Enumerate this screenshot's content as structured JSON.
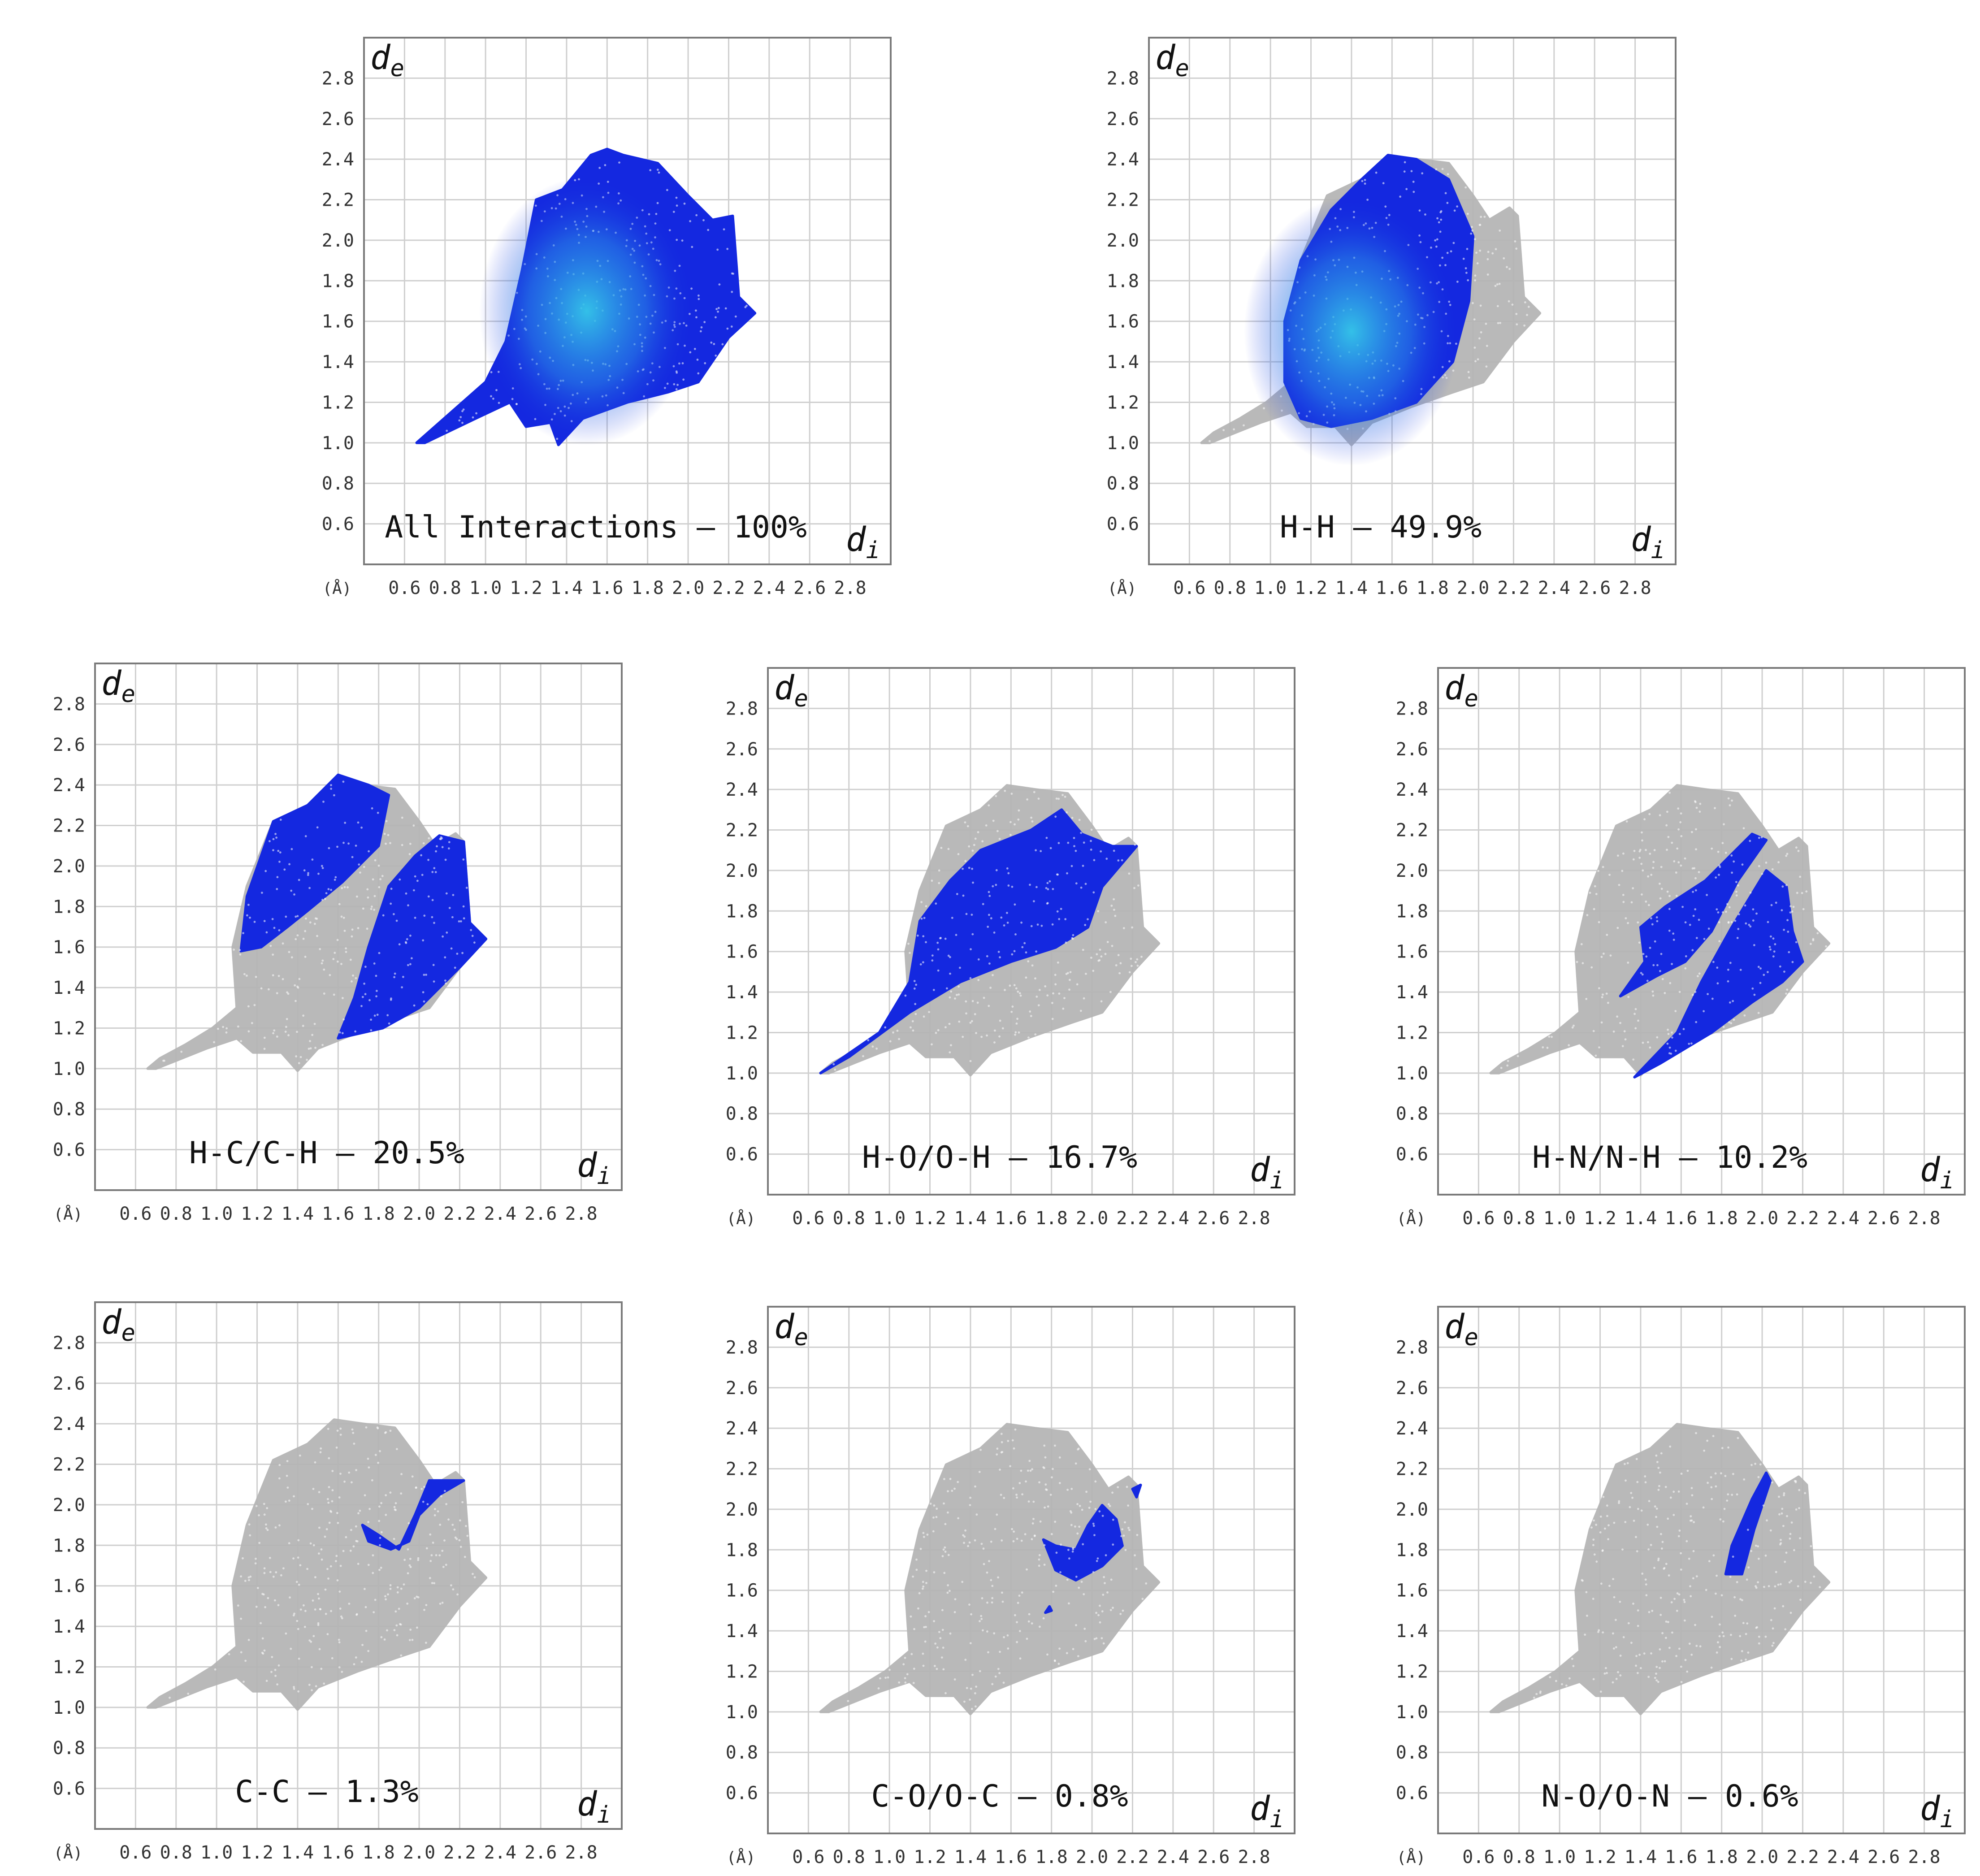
{
  "figure": {
    "description_free": true,
    "axis_unit_label": "(Å)",
    "y_axis_symbol": "d",
    "y_axis_subscript": "e",
    "x_axis_symbol": "d",
    "x_axis_subscript": "i",
    "colors": {
      "background": "#ffffff",
      "frame": "#7a7a7a",
      "grid": "#cfcfcf",
      "gray_cloud": "#b4b4b4",
      "blue": "#1428e0",
      "cyan": "#35c8e8",
      "tick_text": "#333333",
      "title_text": "#111111"
    }
  },
  "chart_data": [
    {
      "type": "scatter",
      "id": "all",
      "title": "All Interactions – 100%",
      "xlabel": "di",
      "ylabel": "de",
      "xlim": [
        0.4,
        3.0
      ],
      "ylim": [
        0.4,
        3.0
      ],
      "x_ticks": [
        "0.6",
        "0.8",
        "1.0",
        "1.2",
        "1.4",
        "1.6",
        "1.8",
        "2.0",
        "2.2",
        "2.4",
        "2.6",
        "2.8"
      ],
      "y_ticks": [
        "2.8",
        "2.6",
        "2.4",
        "2.2",
        "2.0",
        "1.8",
        "1.6",
        "1.4",
        "1.2",
        "1.0",
        "0.8",
        "0.6"
      ],
      "highlight_regions": [
        [
          [
            0.66,
            1.0
          ],
          [
            1.0,
            1.3
          ],
          [
            1.1,
            1.5
          ],
          [
            1.18,
            1.85
          ],
          [
            1.25,
            2.2
          ],
          [
            1.38,
            2.25
          ],
          [
            1.52,
            2.42
          ],
          [
            1.6,
            2.45
          ],
          [
            1.68,
            2.42
          ],
          [
            1.85,
            2.38
          ],
          [
            2.0,
            2.22
          ],
          [
            2.12,
            2.1
          ],
          [
            2.22,
            2.12
          ],
          [
            2.25,
            1.72
          ],
          [
            2.33,
            1.64
          ],
          [
            2.2,
            1.52
          ],
          [
            2.05,
            1.3
          ],
          [
            1.9,
            1.25
          ],
          [
            1.7,
            1.2
          ],
          [
            1.48,
            1.12
          ],
          [
            1.36,
            0.99
          ],
          [
            1.32,
            1.1
          ],
          [
            1.2,
            1.08
          ],
          [
            1.12,
            1.2
          ],
          [
            0.95,
            1.12
          ],
          [
            0.7,
            1.0
          ]
        ]
      ],
      "dense_core": [
        1.5,
        1.65
      ]
    },
    {
      "type": "scatter",
      "id": "hh",
      "title": "H-H – 49.9%",
      "xlabel": "di",
      "ylabel": "de",
      "xlim": [
        0.4,
        3.0
      ],
      "ylim": [
        0.4,
        3.0
      ],
      "x_ticks": [
        "0.6",
        "0.8",
        "1.0",
        "1.2",
        "1.4",
        "1.6",
        "1.8",
        "2.0",
        "2.2",
        "2.4",
        "2.6",
        "2.8"
      ],
      "y_ticks": [
        "2.8",
        "2.6",
        "2.4",
        "2.2",
        "2.0",
        "1.8",
        "1.6",
        "1.4",
        "1.2",
        "1.0",
        "0.8",
        "0.6"
      ],
      "highlight_regions": [
        [
          [
            1.15,
            1.12
          ],
          [
            1.07,
            1.3
          ],
          [
            1.07,
            1.6
          ],
          [
            1.15,
            1.9
          ],
          [
            1.3,
            2.15
          ],
          [
            1.45,
            2.3
          ],
          [
            1.58,
            2.42
          ],
          [
            1.72,
            2.4
          ],
          [
            1.88,
            2.3
          ],
          [
            2.0,
            2.02
          ],
          [
            1.98,
            1.7
          ],
          [
            1.9,
            1.4
          ],
          [
            1.72,
            1.2
          ],
          [
            1.5,
            1.12
          ],
          [
            1.3,
            1.08
          ],
          [
            1.15,
            1.12
          ]
        ]
      ],
      "dense_core": [
        1.4,
        1.55
      ]
    },
    {
      "type": "scatter",
      "id": "hc",
      "title": "H-C/C-H – 20.5%",
      "xlabel": "di",
      "ylabel": "de",
      "xlim": [
        0.4,
        3.0
      ],
      "ylim": [
        0.4,
        3.0
      ],
      "x_ticks": [
        "0.6",
        "0.8",
        "1.0",
        "1.2",
        "1.4",
        "1.6",
        "1.8",
        "2.0",
        "2.2",
        "2.4",
        "2.6",
        "2.8"
      ],
      "y_ticks": [
        "2.8",
        "2.6",
        "2.4",
        "2.2",
        "2.0",
        "1.8",
        "1.6",
        "1.4",
        "1.2",
        "1.0",
        "0.8",
        "0.6"
      ],
      "highlight_regions": [
        [
          [
            1.12,
            1.58
          ],
          [
            1.15,
            1.85
          ],
          [
            1.28,
            2.22
          ],
          [
            1.45,
            2.3
          ],
          [
            1.6,
            2.45
          ],
          [
            1.75,
            2.4
          ],
          [
            1.85,
            2.35
          ],
          [
            1.8,
            2.1
          ],
          [
            1.62,
            1.92
          ],
          [
            1.45,
            1.78
          ],
          [
            1.35,
            1.7
          ],
          [
            1.22,
            1.6
          ],
          [
            1.12,
            1.58
          ]
        ],
        [
          [
            1.6,
            1.15
          ],
          [
            1.68,
            1.35
          ],
          [
            1.75,
            1.6
          ],
          [
            1.85,
            1.9
          ],
          [
            1.98,
            2.05
          ],
          [
            2.1,
            2.15
          ],
          [
            2.22,
            2.12
          ],
          [
            2.25,
            1.72
          ],
          [
            2.33,
            1.64
          ],
          [
            2.2,
            1.5
          ],
          [
            2.0,
            1.3
          ],
          [
            1.82,
            1.2
          ],
          [
            1.6,
            1.15
          ]
        ]
      ],
      "dense_core": null
    },
    {
      "type": "scatter",
      "id": "ho",
      "title": "H-O/O-H – 16.7%",
      "xlabel": "di",
      "ylabel": "de",
      "xlim": [
        0.4,
        3.0
      ],
      "ylim": [
        0.4,
        3.0
      ],
      "x_ticks": [
        "0.6",
        "0.8",
        "1.0",
        "1.2",
        "1.4",
        "1.6",
        "1.8",
        "2.0",
        "2.2",
        "2.4",
        "2.6",
        "2.8"
      ],
      "y_ticks": [
        "2.8",
        "2.6",
        "2.4",
        "2.2",
        "2.0",
        "1.8",
        "1.6",
        "1.4",
        "1.2",
        "1.0",
        "0.8",
        "0.6"
      ],
      "highlight_regions": [
        [
          [
            0.66,
            1.0
          ],
          [
            0.95,
            1.2
          ],
          [
            1.1,
            1.45
          ],
          [
            1.15,
            1.75
          ],
          [
            1.3,
            1.95
          ],
          [
            1.45,
            2.1
          ],
          [
            1.7,
            2.2
          ],
          [
            1.85,
            2.3
          ],
          [
            1.95,
            2.18
          ],
          [
            2.1,
            2.12
          ],
          [
            2.22,
            2.12
          ],
          [
            2.05,
            1.92
          ],
          [
            1.98,
            1.72
          ],
          [
            1.82,
            1.62
          ],
          [
            1.6,
            1.55
          ],
          [
            1.35,
            1.45
          ],
          [
            1.1,
            1.3
          ],
          [
            0.8,
            1.08
          ],
          [
            0.66,
            1.0
          ]
        ]
      ],
      "dense_core": null
    },
    {
      "type": "scatter",
      "id": "hn",
      "title": "H-N/N-H – 10.2%",
      "xlabel": "di",
      "ylabel": "de",
      "xlim": [
        0.4,
        3.0
      ],
      "ylim": [
        0.4,
        3.0
      ],
      "x_ticks": [
        "0.6",
        "0.8",
        "1.0",
        "1.2",
        "1.4",
        "1.6",
        "1.8",
        "2.0",
        "2.2",
        "2.4",
        "2.6",
        "2.8"
      ],
      "y_ticks": [
        "2.8",
        "2.6",
        "2.4",
        "2.2",
        "2.0",
        "1.8",
        "1.6",
        "1.4",
        "1.2",
        "1.0",
        "0.8",
        "0.6"
      ],
      "highlight_regions": [
        [
          [
            1.3,
            1.38
          ],
          [
            1.42,
            1.55
          ],
          [
            1.4,
            1.72
          ],
          [
            1.52,
            1.82
          ],
          [
            1.72,
            1.95
          ],
          [
            1.95,
            2.18
          ],
          [
            2.02,
            2.15
          ],
          [
            1.88,
            1.95
          ],
          [
            1.75,
            1.7
          ],
          [
            1.62,
            1.55
          ],
          [
            1.48,
            1.48
          ],
          [
            1.3,
            1.38
          ]
        ],
        [
          [
            1.37,
            0.98
          ],
          [
            1.58,
            1.2
          ],
          [
            1.7,
            1.45
          ],
          [
            1.85,
            1.72
          ],
          [
            2.02,
            2.0
          ],
          [
            2.12,
            1.92
          ],
          [
            2.15,
            1.7
          ],
          [
            2.2,
            1.55
          ],
          [
            2.1,
            1.45
          ],
          [
            1.95,
            1.35
          ],
          [
            1.75,
            1.2
          ],
          [
            1.5,
            1.05
          ],
          [
            1.37,
            0.98
          ]
        ]
      ],
      "dense_core": null
    },
    {
      "type": "scatter",
      "id": "cc",
      "title": "C-C – 1.3%",
      "xlabel": "di",
      "ylabel": "de",
      "xlim": [
        0.4,
        3.0
      ],
      "ylim": [
        0.4,
        3.0
      ],
      "x_ticks": [
        "0.6",
        "0.8",
        "1.0",
        "1.2",
        "1.4",
        "1.6",
        "1.8",
        "2.0",
        "2.2",
        "2.4",
        "2.6",
        "2.8"
      ],
      "y_ticks": [
        "2.8",
        "2.6",
        "2.4",
        "2.2",
        "2.0",
        "1.8",
        "1.6",
        "1.4",
        "1.2",
        "1.0",
        "0.8",
        "0.6"
      ],
      "highlight_regions": [
        [
          [
            1.72,
            1.9
          ],
          [
            1.8,
            1.85
          ],
          [
            1.9,
            1.78
          ],
          [
            1.98,
            1.95
          ],
          [
            2.05,
            2.12
          ],
          [
            2.15,
            2.12
          ],
          [
            2.22,
            2.12
          ],
          [
            2.1,
            2.05
          ],
          [
            2.0,
            1.95
          ],
          [
            1.95,
            1.82
          ],
          [
            1.86,
            1.78
          ],
          [
            1.75,
            1.82
          ],
          [
            1.72,
            1.9
          ]
        ]
      ],
      "dense_core": null
    },
    {
      "type": "scatter",
      "id": "co",
      "title": "C-O/O-C – 0.8%",
      "xlabel": "di",
      "ylabel": "de",
      "xlim": [
        0.4,
        3.0
      ],
      "ylim": [
        0.4,
        3.0
      ],
      "x_ticks": [
        "0.6",
        "0.8",
        "1.0",
        "1.2",
        "1.4",
        "1.6",
        "1.8",
        "2.0",
        "2.2",
        "2.4",
        "2.6",
        "2.8"
      ],
      "y_ticks": [
        "2.8",
        "2.6",
        "2.4",
        "2.2",
        "2.0",
        "1.8",
        "1.6",
        "1.4",
        "1.2",
        "1.0",
        "0.8",
        "0.6"
      ],
      "highlight_regions": [
        [
          [
            1.76,
            1.85
          ],
          [
            1.82,
            1.7
          ],
          [
            1.92,
            1.65
          ],
          [
            2.05,
            1.72
          ],
          [
            2.15,
            1.82
          ],
          [
            2.12,
            1.95
          ],
          [
            2.05,
            2.02
          ],
          [
            1.98,
            1.92
          ],
          [
            1.92,
            1.8
          ],
          [
            1.82,
            1.82
          ],
          [
            1.76,
            1.85
          ]
        ],
        [
          [
            2.2,
            2.1
          ],
          [
            2.24,
            2.12
          ],
          [
            2.22,
            2.06
          ],
          [
            2.2,
            2.1
          ]
        ],
        [
          [
            1.77,
            1.49
          ],
          [
            1.79,
            1.52
          ],
          [
            1.8,
            1.5
          ],
          [
            1.77,
            1.49
          ]
        ]
      ],
      "dense_core": null
    },
    {
      "type": "scatter",
      "id": "no",
      "title": "N-O/O-N – 0.6%",
      "xlabel": "di",
      "ylabel": "de",
      "xlim": [
        0.4,
        3.0
      ],
      "ylim": [
        0.4,
        3.0
      ],
      "x_ticks": [
        "0.6",
        "0.8",
        "1.0",
        "1.2",
        "1.4",
        "1.6",
        "1.8",
        "2.0",
        "2.2",
        "2.4",
        "2.6",
        "2.8"
      ],
      "y_ticks": [
        "2.8",
        "2.6",
        "2.4",
        "2.2",
        "2.0",
        "1.8",
        "1.6",
        "1.4",
        "1.2",
        "1.0",
        "0.8",
        "0.6"
      ],
      "highlight_regions": [
        [
          [
            1.82,
            1.68
          ],
          [
            1.85,
            1.82
          ],
          [
            1.95,
            2.05
          ],
          [
            2.02,
            2.18
          ],
          [
            2.04,
            2.14
          ],
          [
            1.96,
            1.9
          ],
          [
            1.92,
            1.75
          ],
          [
            1.9,
            1.68
          ],
          [
            1.82,
            1.68
          ]
        ]
      ],
      "dense_core": null
    }
  ],
  "gray_cloud": [
    [
      0.66,
      1.0
    ],
    [
      0.72,
      1.05
    ],
    [
      0.85,
      1.12
    ],
    [
      0.98,
      1.2
    ],
    [
      1.1,
      1.3
    ],
    [
      1.08,
      1.6
    ],
    [
      1.15,
      1.9
    ],
    [
      1.28,
      2.22
    ],
    [
      1.45,
      2.3
    ],
    [
      1.58,
      2.42
    ],
    [
      1.72,
      2.4
    ],
    [
      1.88,
      2.38
    ],
    [
      2.0,
      2.22
    ],
    [
      2.08,
      2.1
    ],
    [
      2.18,
      2.16
    ],
    [
      2.22,
      2.12
    ],
    [
      2.25,
      1.72
    ],
    [
      2.33,
      1.64
    ],
    [
      2.2,
      1.5
    ],
    [
      2.05,
      1.3
    ],
    [
      1.9,
      1.25
    ],
    [
      1.7,
      1.18
    ],
    [
      1.5,
      1.1
    ],
    [
      1.4,
      0.99
    ],
    [
      1.32,
      1.08
    ],
    [
      1.18,
      1.08
    ],
    [
      1.1,
      1.15
    ],
    [
      0.95,
      1.1
    ],
    [
      0.7,
      1.0
    ]
  ]
}
